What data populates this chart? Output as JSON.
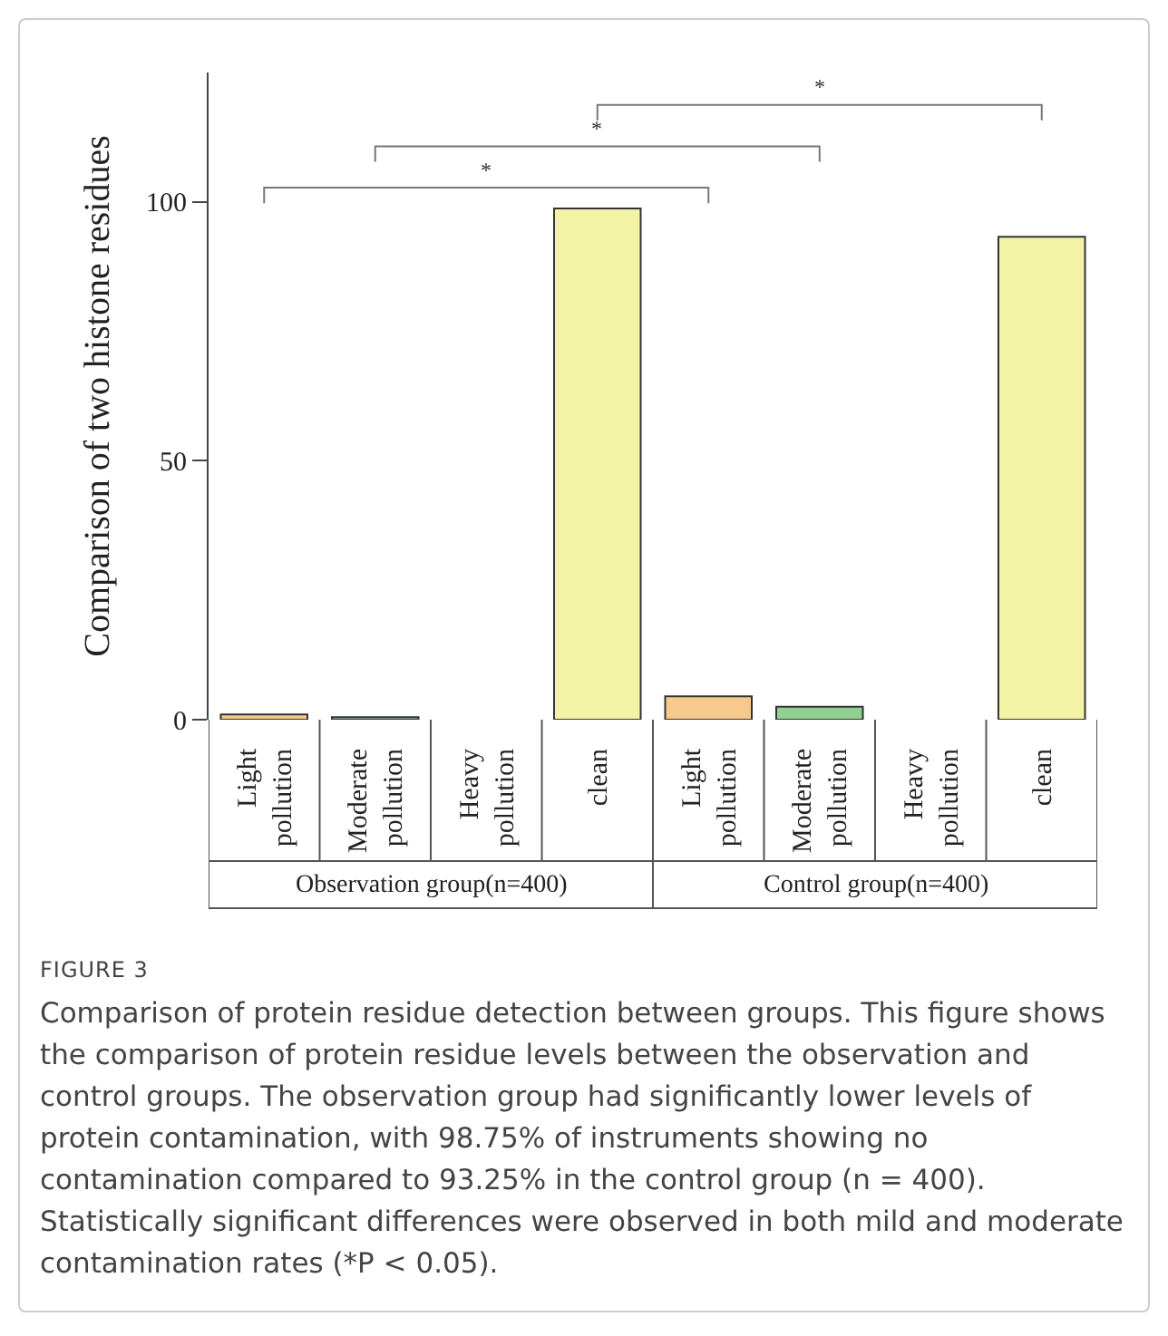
{
  "chart_data": {
    "type": "bar",
    "title": "FIGURE 3",
    "subtitle": "Comparison of protein residue detection between groups. This figure shows the comparison of protein residue levels between the observation and control groups. The observation group had significantly lower levels of protein contamination, with 98.75% of instruments showing no contamination compared to 93.25% in the control group (n = 400). Statistically significant differences were observed in both mild and moderate contamination rates (*P < 0.05).",
    "ylabel": "Comparison of two histone residues",
    "categories": [
      "Light pollution",
      "Moderate pollution",
      "Heavy pollution",
      "clean",
      "Light pollution",
      "Moderate pollution",
      "Heavy pollution",
      "clean"
    ],
    "values": [
      1,
      0.5,
      null,
      98.75,
      4.5,
      2.5,
      null,
      93.25
    ],
    "colors": [
      "#f8c98c",
      "#90d090",
      null,
      "#f3f3a6",
      "#f8c98c",
      "#90d090",
      null,
      "#f3f3a6"
    ],
    "annotations": [
      "Observation group(n=400)",
      "Control group(n=400)",
      "*",
      "*",
      "*"
    ],
    "ylim": [
      0,
      125
    ],
    "yticks": [
      0,
      50,
      100
    ],
    "grid": false
  }
}
